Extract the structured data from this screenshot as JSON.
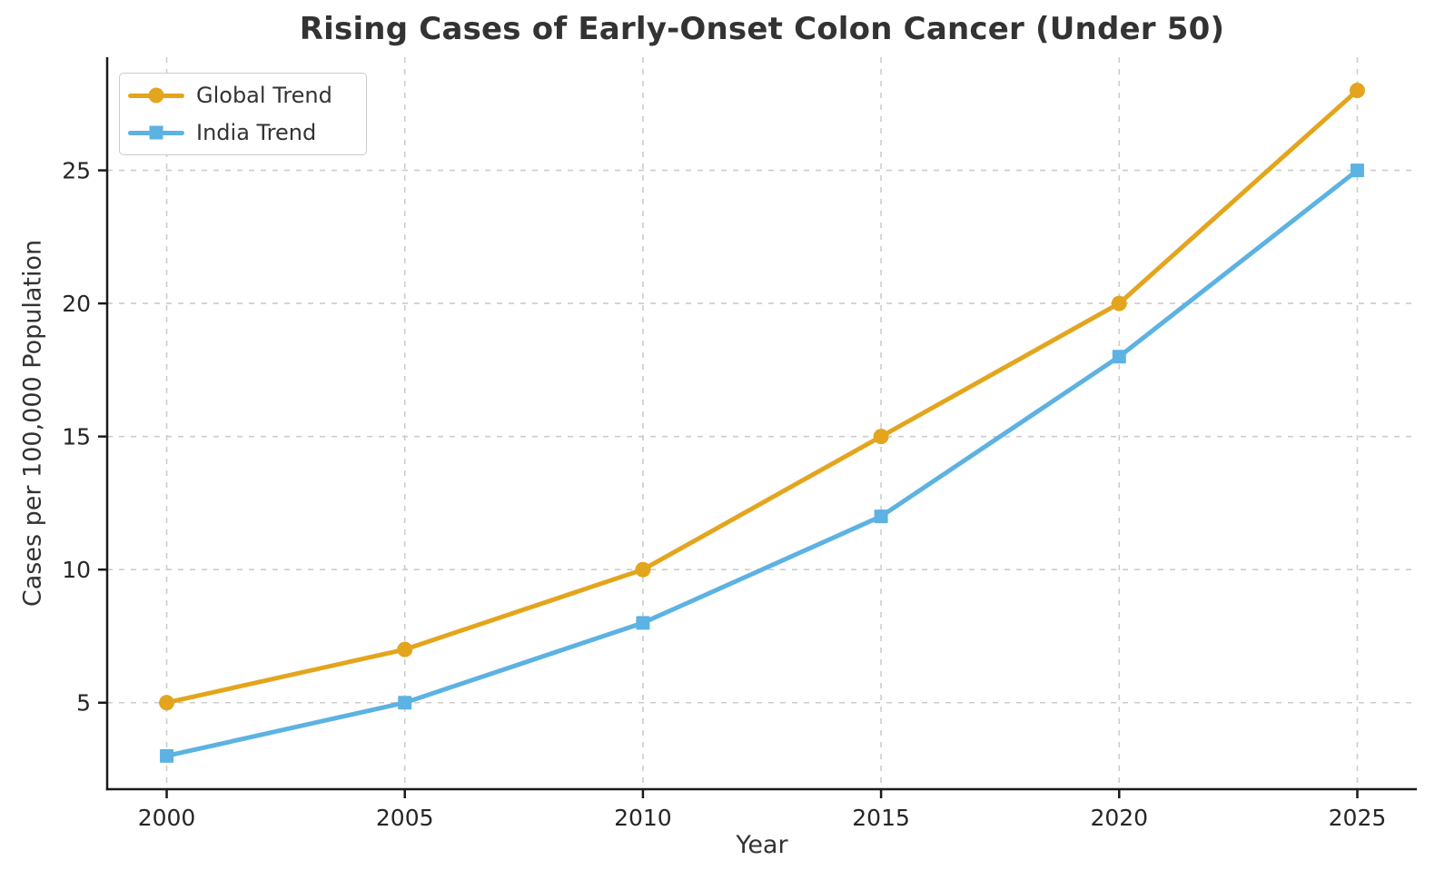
{
  "chart_data": {
    "type": "line",
    "title": "Rising Cases of Early-Onset Colon Cancer (Under 50)",
    "xlabel": "Year",
    "ylabel": "Cases per 100,000 Population",
    "x": [
      2000,
      2005,
      2010,
      2015,
      2020,
      2025
    ],
    "series": [
      {
        "name": "Global Trend",
        "values": [
          5,
          7,
          10,
          15,
          20,
          28
        ],
        "color": "#E3A51D",
        "marker": "circle"
      },
      {
        "name": "India Trend",
        "values": [
          3,
          5,
          8,
          12,
          18,
          25
        ],
        "color": "#5CB2E2",
        "marker": "square"
      }
    ],
    "x_ticks": [
      2000,
      2005,
      2010,
      2015,
      2020,
      2025
    ],
    "y_ticks": [
      5,
      10,
      15,
      20,
      25
    ],
    "xlim": [
      1998.75,
      2026.25
    ],
    "ylim": [
      1.75,
      29.25
    ],
    "grid": true,
    "grid_style": "dashed",
    "legend_position": "upper-left",
    "colors": {
      "grid": "#cccccc",
      "spine": "#1a1a1a",
      "tick_label": "#262626",
      "title": "#333333"
    }
  }
}
